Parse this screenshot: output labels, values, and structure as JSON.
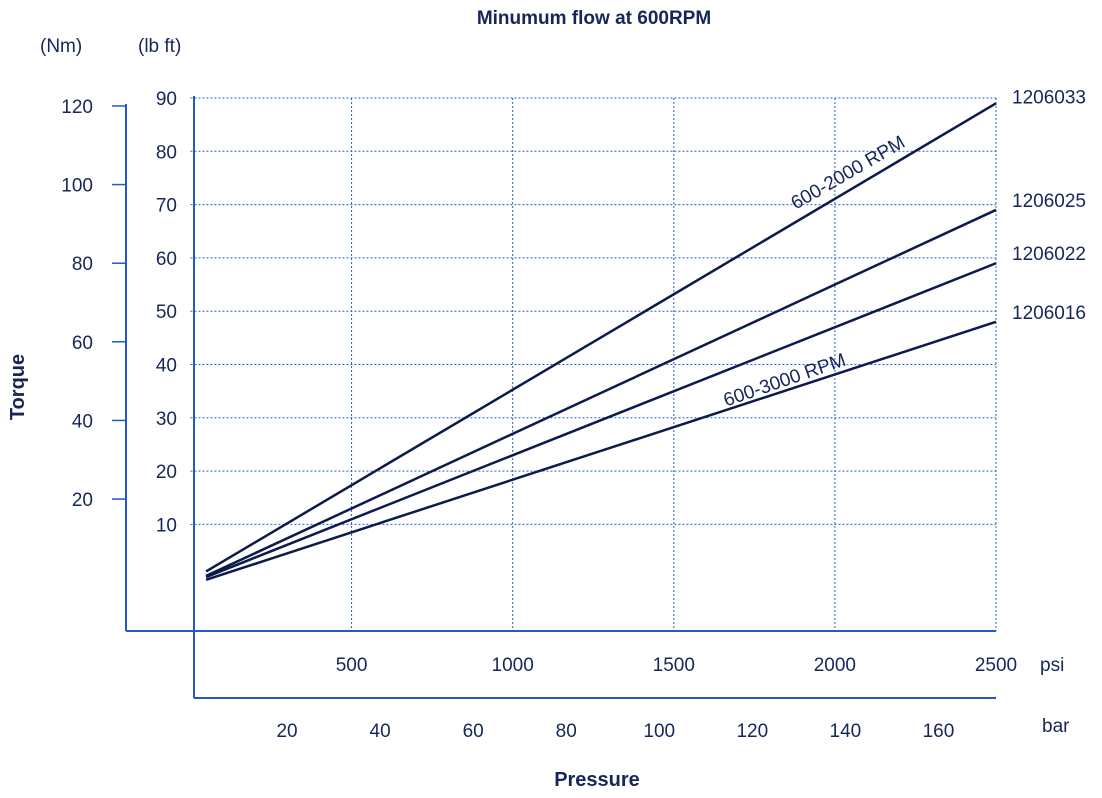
{
  "chart_data": {
    "type": "line",
    "title": "Minumum flow at 600RPM",
    "xlabel": "Pressure",
    "ylabel": "Torque",
    "x_unit": "psi",
    "x_secondary_unit": "bar",
    "y_unit": "(lb ft)",
    "y_secondary_unit": "(Nm)",
    "xlim": [
      -200,
      2500
    ],
    "ylim": [
      -10,
      90
    ],
    "x_ticks": [
      500,
      1000,
      1500,
      2000,
      2500
    ],
    "x_secondary_ticks": [
      20,
      40,
      60,
      80,
      100,
      120,
      140,
      160
    ],
    "y_ticks": [
      10,
      20,
      30,
      40,
      50,
      60,
      70,
      80,
      90
    ],
    "y_secondary_ticks": [
      20,
      40,
      60,
      80,
      100,
      120
    ],
    "grid": true,
    "series": [
      {
        "name": "1206033",
        "x": [
          0,
          2500
        ],
        "y": [
          1,
          89
        ]
      },
      {
        "name": "1206025",
        "x": [
          0,
          2500
        ],
        "y": [
          0.2,
          69
        ]
      },
      {
        "name": "1206022",
        "x": [
          0,
          2500
        ],
        "y": [
          0,
          59
        ]
      },
      {
        "name": "1206016",
        "x": [
          0,
          2500
        ],
        "y": [
          -0.5,
          48
        ]
      }
    ],
    "annotations": [
      {
        "text": "600-2000 RPM",
        "x": 2050,
        "y": 75,
        "angle": -30
      },
      {
        "text": "600-3000 RPM",
        "x": 1850,
        "y": 36,
        "angle": -19
      }
    ]
  }
}
